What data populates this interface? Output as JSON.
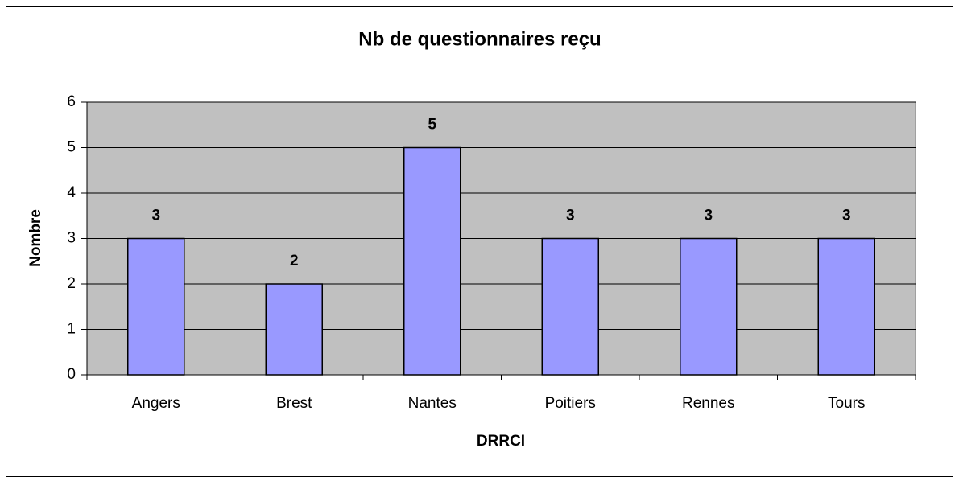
{
  "chart_data": {
    "type": "bar",
    "title": "Nb de questionnaires reçu",
    "x_label": "DRRCI",
    "y_label": "Nombre",
    "categories": [
      "Angers",
      "Brest",
      "Nantes",
      "Poitiers",
      "Rennes",
      "Tours"
    ],
    "values": [
      3,
      2,
      5,
      3,
      3,
      3
    ],
    "color": "#9999ff",
    "plot_background": "#c0c0c0",
    "ylim": [
      0,
      6
    ],
    "yticks": [
      0,
      1,
      2,
      3,
      4,
      5,
      6
    ],
    "grid": true
  }
}
